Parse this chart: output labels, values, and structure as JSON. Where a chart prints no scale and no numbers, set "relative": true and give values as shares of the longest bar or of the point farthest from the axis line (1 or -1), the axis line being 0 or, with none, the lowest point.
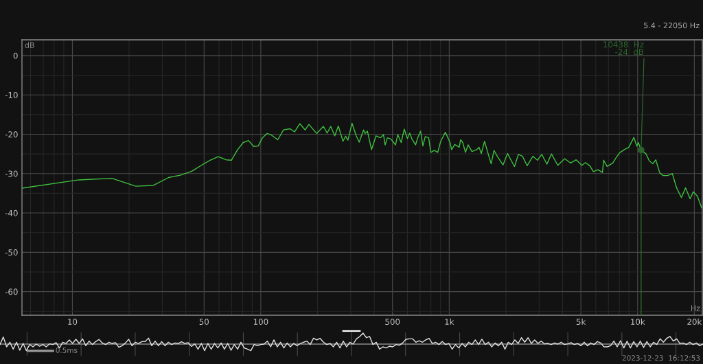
{
  "chart_data": [
    {
      "type": "line",
      "subtitle": "5.4 - 22050 Hz",
      "xlabel": "Hz",
      "ylabel": "dB",
      "log": "x",
      "xlim": [
        5.4,
        22050
      ],
      "ylim": [
        -66,
        4
      ],
      "xticks": [
        {
          "value": 6,
          "label": null
        },
        {
          "value": 7,
          "label": null
        },
        {
          "value": 8,
          "label": null
        },
        {
          "value": 9,
          "label": null
        },
        10,
        {
          "value": 20,
          "label": null
        },
        {
          "value": 30,
          "label": null
        },
        {
          "value": 40,
          "label": null
        },
        50,
        {
          "value": 60,
          "label": null
        },
        {
          "value": 70,
          "label": null
        },
        {
          "value": 80,
          "label": null
        },
        {
          "value": 90,
          "label": null
        },
        100,
        {
          "value": 200,
          "label": null
        },
        {
          "value": 300,
          "label": null
        },
        {
          "value": 400,
          "label": null
        },
        500,
        {
          "value": 600,
          "label": null
        },
        {
          "value": 700,
          "label": null
        },
        {
          "value": 800,
          "label": null
        },
        {
          "value": 900,
          "label": null
        },
        {
          "value": 1000,
          "label": "1k"
        },
        {
          "value": 2000,
          "label": null
        },
        {
          "value": 3000,
          "label": null
        },
        {
          "value": 4000,
          "label": null
        },
        {
          "value": 5000,
          "label": "5k"
        },
        {
          "value": 6000,
          "label": null
        },
        {
          "value": 7000,
          "label": null
        },
        {
          "value": 8000,
          "label": null
        },
        {
          "value": 9000,
          "label": null
        },
        {
          "value": 10000,
          "label": "10k"
        },
        {
          "value": 20000,
          "label": "20k"
        }
      ],
      "yticks": [
        {
          "value": -65,
          "label": null
        },
        -60,
        {
          "value": -55,
          "label": null
        },
        -50,
        {
          "value": -45,
          "label": null
        },
        -40,
        {
          "value": -35,
          "label": null
        },
        -30,
        {
          "value": -25,
          "label": null
        },
        -20,
        {
          "value": -15,
          "label": null
        },
        -10,
        {
          "value": -5,
          "label": null
        },
        0
      ],
      "grid": true,
      "series": [
        {
          "color": "#40c040",
          "x": [
            5.4,
            10.8,
            16.2,
            21.7,
            26.9,
            32.4,
            37.4,
            43,
            49.5,
            53.8,
            59.4,
            65.5,
            69.8,
            75.3,
            80.7,
            86.1,
            91.6,
            96.9,
            102,
            108,
            113,
            123,
            132,
            143,
            151,
            161,
            172,
            180,
            198,
            215,
            225,
            235,
            247,
            258,
            273,
            282,
            290,
            305,
            321,
            333,
            351,
            358,
            368,
            387,
            409,
            432,
            448,
            457,
            470,
            490,
            519,
            533,
            556,
            577,
            600,
            617,
            634,
            663,
            682,
            705,
            725,
            746,
            778,
            799,
            834,
            869,
            901,
            954,
            1010,
            1030,
            1070,
            1130,
            1150,
            1180,
            1220,
            1260,
            1320,
            1400,
            1440,
            1480,
            1540,
            1610,
            1670,
            1730,
            1800,
            1930,
            2040,
            2130,
            2220,
            2330,
            2450,
            2590,
            2780,
            2940,
            3100,
            3300,
            3490,
            3770,
            4100,
            4400,
            4720,
            5060,
            5280,
            5580,
            5820,
            6160,
            6510,
            6600,
            6890,
            7380,
            7700,
            8030,
            8500,
            8980,
            9550,
            9900,
            10090,
            10438,
            11080,
            11550,
            12050,
            12490,
            13100,
            13660,
            14440,
            15280,
            16070,
            17080,
            17960,
            19000,
            19760,
            20790,
            21860
          ],
          "values": [
            -33.7,
            -31.6,
            -31.2,
            -33.2,
            -33.0,
            -31.0,
            -30.4,
            -29.4,
            -27.6,
            -26.6,
            -25.7,
            -26.5,
            -26.6,
            -23.9,
            -22.1,
            -21.6,
            -23.1,
            -23.0,
            -20.9,
            -19.8,
            -20.1,
            -21.4,
            -18.9,
            -18.6,
            -19.4,
            -17.3,
            -18.9,
            -17.5,
            -19.8,
            -18.0,
            -19.7,
            -18.0,
            -20.4,
            -17.9,
            -21.8,
            -20.5,
            -21.5,
            -17.2,
            -20.4,
            -22.0,
            -18.9,
            -19.8,
            -19.2,
            -23.9,
            -20.4,
            -20.9,
            -20.1,
            -22.7,
            -20.9,
            -21.2,
            -22.7,
            -20.1,
            -22.1,
            -18.7,
            -21.1,
            -19.7,
            -21.2,
            -22.7,
            -20.8,
            -19.2,
            -23.0,
            -20.6,
            -20.9,
            -24.6,
            -24.1,
            -24.6,
            -21.8,
            -19.5,
            -22.1,
            -23.9,
            -22.6,
            -23.3,
            -21.4,
            -22.1,
            -24.6,
            -22.7,
            -24.4,
            -23.9,
            -23.3,
            -24.9,
            -21.8,
            -25.0,
            -27.5,
            -24.1,
            -25.6,
            -27.8,
            -24.9,
            -26.6,
            -28.2,
            -25.1,
            -25.6,
            -28.0,
            -25.6,
            -26.6,
            -25.1,
            -27.6,
            -25.0,
            -27.9,
            -26.2,
            -27.3,
            -26.5,
            -27.9,
            -27.2,
            -28.0,
            -29.5,
            -29.0,
            -29.7,
            -26.6,
            -28.2,
            -27.3,
            -25.9,
            -24.7,
            -23.9,
            -23.3,
            -20.8,
            -23.0,
            -22.1,
            -24,
            -25.0,
            -26.8,
            -27.5,
            -26.5,
            -29.8,
            -30.5,
            -30.5,
            -30.0,
            -33.5,
            -36.1,
            -33.6,
            -36.4,
            -34.6,
            -35.8,
            -38.7
          ]
        }
      ],
      "ref_lines": [
        {
          "axis": "x",
          "value": 10438,
          "color": "#2d672d"
        }
      ],
      "annotations": [
        {
          "text": "10438  Hz\n-24  dB",
          "x": 10438,
          "y": -24
        }
      ]
    },
    {
      "type": "line",
      "relative": true,
      "categories": [
        null,
        null,
        null,
        null,
        null,
        null,
        null,
        null,
        null,
        null,
        null,
        null,
        null,
        null,
        null,
        null,
        null,
        null,
        null,
        null,
        null,
        null,
        null,
        null,
        null,
        null,
        null,
        null,
        null,
        null,
        null,
        null,
        null,
        null,
        null,
        null,
        null,
        null,
        null,
        null,
        null,
        null,
        null,
        null,
        null,
        null,
        null,
        null,
        null,
        null,
        null,
        null,
        null,
        null,
        null,
        null,
        null,
        null,
        null,
        null,
        null,
        null,
        null,
        null,
        null,
        null,
        null,
        null,
        null,
        null,
        null,
        null,
        null,
        null,
        null,
        null,
        null,
        null,
        null,
        null,
        null,
        null,
        null,
        null,
        null,
        null,
        null,
        null,
        null,
        null,
        null,
        null,
        null,
        null,
        null,
        null,
        null,
        null,
        null,
        null,
        null,
        null,
        null,
        null,
        null,
        null,
        null,
        null,
        null,
        null,
        null,
        null,
        null,
        null,
        null,
        null,
        null,
        null,
        null,
        null,
        null,
        null,
        null,
        null,
        null,
        null,
        null,
        null,
        null,
        null,
        null,
        null,
        null,
        null,
        null,
        null,
        null,
        null,
        null,
        null,
        null,
        null,
        null,
        null,
        null,
        null,
        null,
        null,
        null,
        null,
        null,
        null,
        null,
        null,
        null,
        null,
        null,
        null,
        null,
        null,
        null,
        null,
        null,
        null,
        null,
        null,
        null,
        null,
        null,
        null,
        null,
        null,
        null,
        null,
        null,
        null,
        null,
        null,
        null,
        null,
        null,
        null,
        null,
        null,
        null,
        null,
        null,
        null,
        null,
        null,
        null,
        null,
        null,
        null,
        null,
        null,
        null,
        null,
        null,
        null,
        null,
        null,
        null,
        null,
        null,
        null,
        null,
        null,
        null,
        null,
        null,
        null,
        null,
        null
      ],
      "series": [
        {
          "color": "#e2e2e2",
          "values": [
            -0.04,
            0.65,
            -0.25,
            0.17,
            -0.46,
            0.17,
            -0.56,
            0.06,
            -0.6,
            -0.04,
            -0.25,
            0,
            -0.19,
            -0.04,
            -0.25,
            0.02,
            -0.04,
            0.13,
            -0.35,
            0.17,
            0.06,
            0.38,
            0.06,
            0.44,
            0.06,
            0.48,
            -0.15,
            0.27,
            -0.04,
            0.23,
            0.42,
            0.1,
            -0.04,
            0.17,
            0.06,
            0.13,
            -0.29,
            -0.15,
            0.1,
            0.44,
            -0.15,
            0.17,
            0.06,
            0.23,
            0.23,
            0.54,
            -0.15,
            0.27,
            -0.15,
            0.23,
            -0.15,
            0.17,
            -0.04,
            0.1,
            0.06,
            0.21,
            0.06,
            0.13,
            -0.21,
            0.02,
            -0.46,
            0.06,
            -0.6,
            0.06,
            -0.46,
            0.06,
            -0.35,
            0.1,
            -0.46,
            0.06,
            -0.56,
            -0.04,
            -0.46,
            0.17,
            -0.35,
            -0.46,
            -0.6,
            -0.04,
            -0.15,
            -0.04,
            0,
            0.27,
            -0.25,
            0.38,
            -0.25,
            0.17,
            -0.35,
            0.1,
            -0.25,
            0.06,
            -0.15,
            0.06,
            0.17,
            0.27,
            -0.04,
            0.54,
            0.38,
            0.52,
            0.17,
            -0.04,
            0.06,
            -0.25,
            0.17,
            -0.35,
            0.27,
            -0.25,
            0.17,
            0,
            0.48,
            0.69,
            1,
            0.58,
            0.69,
            -0.04,
            0.17,
            -0.46,
            -0.25,
            -0.35,
            -0.19,
            -0.25,
            -0.04,
            -0.1,
            0.1,
            0.44,
            0.48,
            0.48,
            0.17,
            0.31,
            0.17,
            0.38,
            0.52,
            0.06,
            0.17,
            -0.04,
            0.23,
            -0.04,
            0.06,
            -0.46,
            -0.04,
            -0.35,
            0.06,
            -0.25,
            0.17,
            -0.04,
            0.38,
            -0.04,
            0.44,
            -0.04,
            0.17,
            -0.25,
            0.1,
            -0.15,
            0.17,
            -0.46,
            0.17,
            -0.04,
            0.38,
            0.06,
            0.58,
            0.17,
            0.58,
            0.06,
            0.38,
            0.06,
            0.27,
            0.02,
            0.06,
            -0.04,
            0.1,
            0,
            0.17,
            -0.04,
            0.02,
            0.13,
            -0.04,
            0.06,
            -0.15,
            0.17,
            -0.15,
            0.1,
            -0.04,
            0.23,
            0.1,
            -0.25,
            -0.25,
            -0.15,
            0.27,
            -0.25,
            0.31,
            -0.35,
            0.27,
            -0.35,
            0.23,
            -0.25,
            0.27,
            -0.31,
            0.23,
            -0.25,
            0.17,
            -0.04,
            0.48,
            0.17,
            0.52,
            0.69,
            0.27,
            0.48,
            0.06,
            0.1,
            -0.04,
            0.17,
            -0.04,
            0.1,
            -0.15,
            0
          ]
        }
      ],
      "annotations": [
        "0.5ms",
        "2023-12-23  16:12:53"
      ]
    }
  ]
}
